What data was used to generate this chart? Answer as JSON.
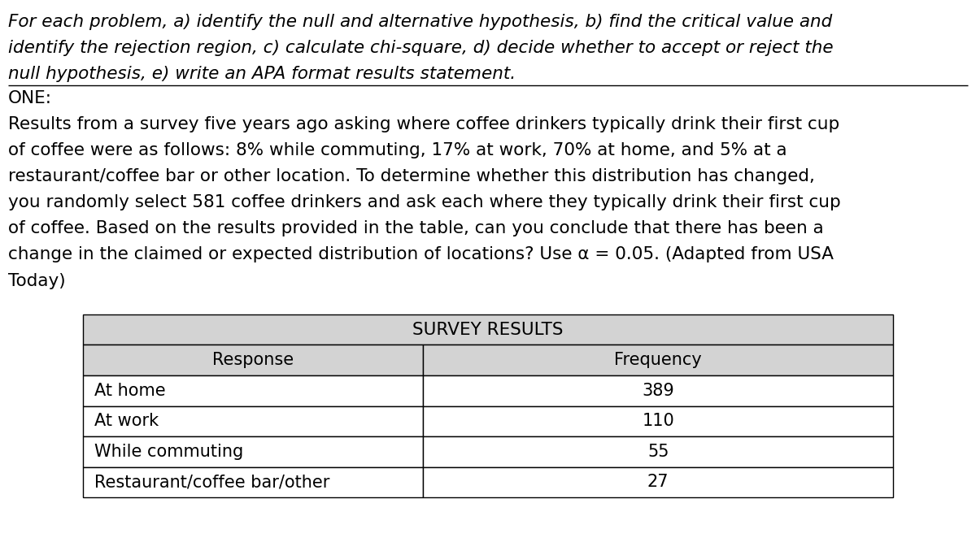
{
  "background_color": "#ffffff",
  "header_lines": [
    "For each problem, a) identify the null and alternative hypothesis, b) find the critical value and",
    "identify the rejection region, c) calculate chi-square, d) decide whether to accept or reject the",
    "null hypothesis, e) write an APA format results statement."
  ],
  "section_label": "ONE:",
  "body_lines": [
    "Results from a survey five years ago asking where coffee drinkers typically drink their first cup",
    "of coffee were as follows: 8% while commuting, 17% at work, 70% at home, and 5% at a",
    "restaurant/coffee bar or other location. To determine whether this distribution has changed,",
    "you randomly select 581 coffee drinkers and ask each where they typically drink their first cup",
    "of coffee. Based on the results provided in the table, can you conclude that there has been a",
    "change in the claimed or expected distribution of locations? Use α = 0.05. (Adapted from USA",
    "Today)"
  ],
  "table_title": "SURVEY RESULTS",
  "table_col1_header": "Response",
  "table_col2_header": "Frequency",
  "table_rows": [
    [
      "At home",
      "389"
    ],
    [
      "At work",
      "110"
    ],
    [
      "While commuting",
      "55"
    ],
    [
      "Restaurant/coffee bar/other",
      "27"
    ]
  ],
  "table_header_bg": "#d3d3d3",
  "table_title_bg": "#d3d3d3",
  "table_row_bg": "#ffffff",
  "font_size_header": 15.5,
  "font_size_body": 15.5,
  "font_size_table_title": 15.5,
  "font_size_table_content": 15.0
}
